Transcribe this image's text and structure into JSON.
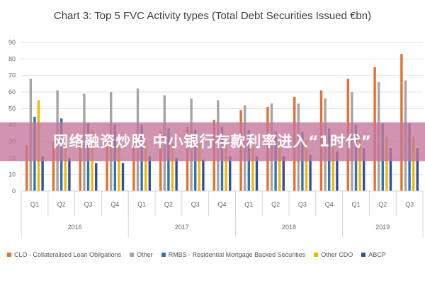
{
  "banner": {
    "text": "网络融资炒股 中小银行存款利率进入“1时代”"
  },
  "chart_data": {
    "type": "bar",
    "title": "Chart 3: Top 5 FVC Activity types (Total Debt Securities Issued €bn)",
    "xlabel": "",
    "ylabel": "",
    "ylim": [
      0,
      90
    ],
    "y_ticks": [
      0,
      10,
      20,
      30,
      40,
      50,
      60,
      70,
      80,
      90
    ],
    "grid": true,
    "legend_position": "bottom",
    "categories": [
      "Q1",
      "Q2",
      "Q3",
      "Q4",
      "Q1",
      "Q2",
      "Q3",
      "Q4",
      "Q1",
      "Q2",
      "Q3",
      "Q4",
      "Q1",
      "Q2",
      "Q3"
    ],
    "year_groups": [
      {
        "label": "2016",
        "count": 4
      },
      {
        "label": "2017",
        "count": 4
      },
      {
        "label": "2018",
        "count": 4
      },
      {
        "label": "2019",
        "count": 3
      }
    ],
    "series": [
      {
        "name": "CLO - Collateralised Loan Obligations",
        "color": "#e8702a",
        "values": [
          28,
          30,
          32,
          33,
          34,
          36,
          39,
          43,
          49,
          51,
          57,
          61,
          68,
          75,
          83
        ]
      },
      {
        "name": "Other",
        "color": "#a5a5a5",
        "values": [
          68,
          61,
          59,
          60,
          62,
          58,
          56,
          55,
          52,
          53,
          53,
          56,
          60,
          66,
          67
        ]
      },
      {
        "name": "RMBS - Residential Mortgage Backed Securities",
        "color": "#2e75b6",
        "values": [
          45,
          44,
          41,
          40,
          40,
          38,
          37,
          39,
          37,
          36,
          36,
          38,
          40,
          41,
          41
        ]
      },
      {
        "name": "Other CDO",
        "color": "#f2b800",
        "values": [
          55,
          34,
          37,
          30,
          30,
          29,
          29,
          28,
          27,
          30,
          31,
          30,
          34,
          33,
          33
        ]
      },
      {
        "name": "ABCP",
        "color": "#2f4fa0",
        "values": [
          21,
          20,
          17,
          17,
          21,
          20,
          19,
          21,
          21,
          21,
          22,
          24,
          26,
          26,
          26
        ]
      }
    ]
  }
}
